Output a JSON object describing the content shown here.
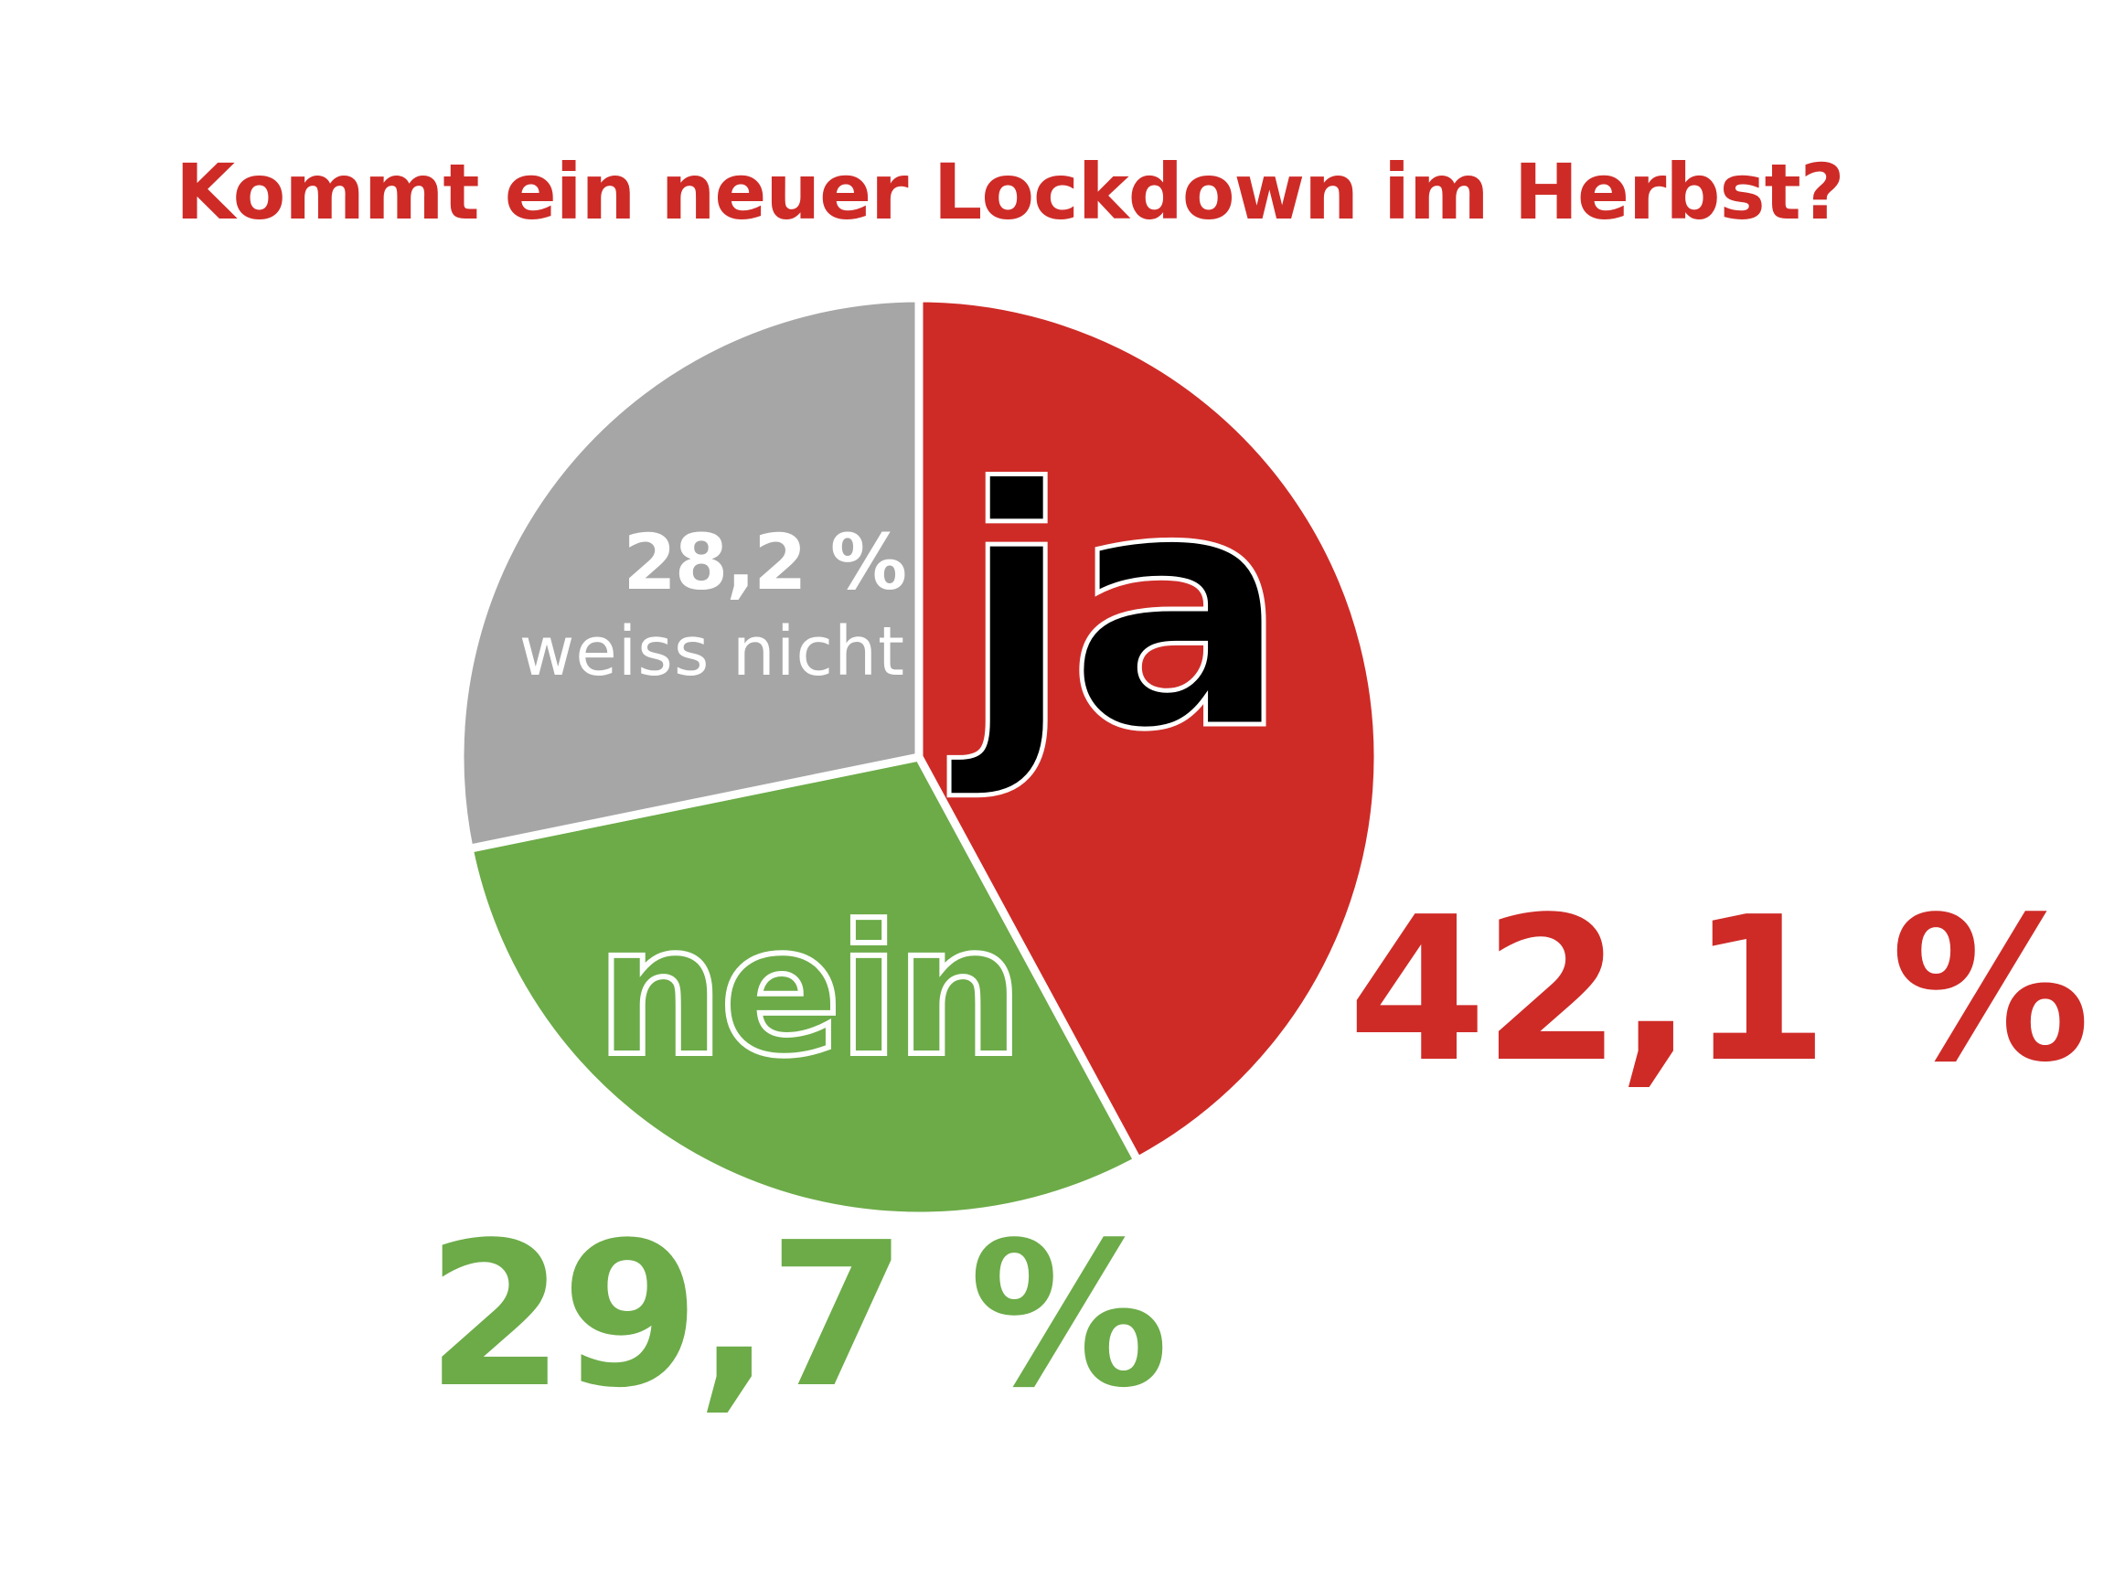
{
  "chart_data": {
    "type": "pie",
    "title": "Kommt ein neuer Lockdown im Herbst?",
    "slices": [
      {
        "label": "ja",
        "value": 42.1,
        "value_text": "42,1 %",
        "color": "#ce2b27"
      },
      {
        "label": "nein",
        "value": 29.7,
        "value_text": "29,7 %",
        "color": "#6cab48"
      },
      {
        "label": "weiss nicht",
        "value": 28.2,
        "value_text": "28,2 %",
        "color": "#a6a6a6"
      }
    ]
  },
  "colors": {
    "title": "#ce2b27",
    "background": "#ffffff",
    "ja_word_fill": "#000000",
    "outline": "#ffffff"
  }
}
